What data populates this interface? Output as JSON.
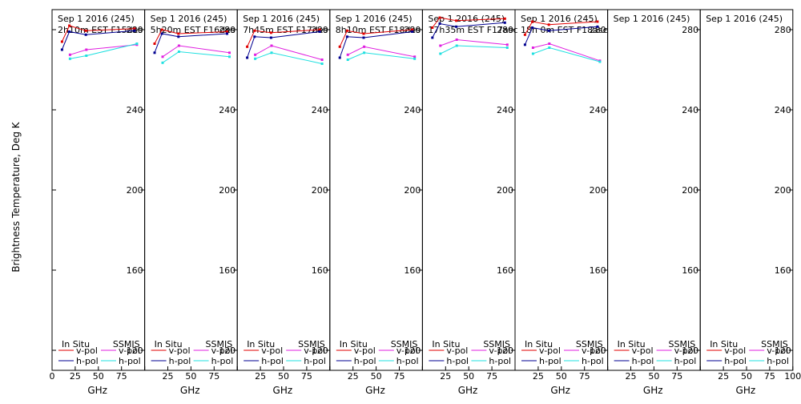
{
  "figure": {
    "ylabel": "Brightness Temperature, Deg K",
    "xlabel": "GHz",
    "legend": {
      "in_situ": "In Situ",
      "ssmis": "SSMIS",
      "vpol": "v-pol",
      "hpol": "h-pol"
    }
  },
  "colors": {
    "insitu_v": "#e00000",
    "insitu_h": "#000090",
    "ssmis_v": "#e020e0",
    "ssmis_h": "#20e0e0"
  },
  "chart_data": [
    {
      "type": "line",
      "title": "Sep 1 2016 (245)",
      "subtitle": "2h10m  EST F15des",
      "xlim": [
        0,
        100
      ],
      "ylim": [
        110,
        290
      ],
      "yticks": [
        120,
        160,
        200,
        240,
        280
      ],
      "xticks": [
        0,
        25,
        50,
        75,
        100
      ],
      "series": [
        {
          "name": "In Situ v-pol",
          "x": [
            10.7,
            18.7,
            36.5,
            89
          ],
          "y": [
            274,
            282,
            279.5,
            280.5
          ]
        },
        {
          "name": "In Situ h-pol",
          "x": [
            10.7,
            18.7,
            36.5,
            89
          ],
          "y": [
            270,
            279,
            277.5,
            279.5
          ]
        },
        {
          "name": "SSMIS v-pol",
          "x": [
            19.35,
            37,
            91.65
          ],
          "y": [
            267.5,
            270,
            272.5
          ]
        },
        {
          "name": "SSMIS h-pol",
          "x": [
            19.35,
            37,
            91.65
          ],
          "y": [
            265.5,
            267,
            273
          ]
        }
      ]
    },
    {
      "type": "line",
      "title": "Sep 1 2016 (245)",
      "subtitle": "5h20m  EST F16des",
      "xlim": [
        0,
        100
      ],
      "ylim": [
        110,
        290
      ],
      "yticks": [
        120,
        160,
        200,
        240,
        280
      ],
      "xticks": [
        0,
        25,
        50,
        75,
        100
      ],
      "series": [
        {
          "name": "In Situ v-pol",
          "x": [
            10.7,
            18.7,
            36.5,
            89
          ],
          "y": [
            273,
            280,
            278,
            279
          ]
        },
        {
          "name": "In Situ h-pol",
          "x": [
            10.7,
            18.7,
            36.5,
            89
          ],
          "y": [
            268.5,
            278,
            276.5,
            278
          ]
        },
        {
          "name": "SSMIS v-pol",
          "x": [
            19.35,
            37,
            91.65
          ],
          "y": [
            266.5,
            272,
            268.5
          ]
        },
        {
          "name": "SSMIS h-pol",
          "x": [
            19.35,
            37,
            91.65
          ],
          "y": [
            263.5,
            269,
            266.5
          ]
        }
      ]
    },
    {
      "type": "line",
      "title": "Sep 1 2016 (245)",
      "subtitle": "7h45m  EST F17des",
      "xlim": [
        0,
        100
      ],
      "ylim": [
        110,
        290
      ],
      "yticks": [
        120,
        160,
        200,
        240,
        280
      ],
      "xticks": [
        0,
        25,
        50,
        75,
        100
      ],
      "series": [
        {
          "name": "In Situ v-pol",
          "x": [
            10.7,
            18.7,
            36.5,
            89
          ],
          "y": [
            271.5,
            279.5,
            278.5,
            280
          ]
        },
        {
          "name": "In Situ h-pol",
          "x": [
            10.7,
            18.7,
            36.5,
            89
          ],
          "y": [
            266,
            276.5,
            276,
            279
          ]
        },
        {
          "name": "SSMIS v-pol",
          "x": [
            19.35,
            37,
            91.65
          ],
          "y": [
            267.5,
            272,
            265
          ]
        },
        {
          "name": "SSMIS h-pol",
          "x": [
            19.35,
            37,
            91.65
          ],
          "y": [
            265.5,
            268.5,
            263
          ]
        }
      ]
    },
    {
      "type": "line",
      "title": "Sep 1 2016 (245)",
      "subtitle": "8h10m  EST F18des",
      "xlim": [
        0,
        100
      ],
      "ylim": [
        110,
        290
      ],
      "yticks": [
        120,
        160,
        200,
        240,
        280
      ],
      "xticks": [
        0,
        25,
        50,
        75,
        100
      ],
      "series": [
        {
          "name": "In Situ v-pol",
          "x": [
            10.7,
            18.7,
            36.5,
            89
          ],
          "y": [
            271.5,
            279.5,
            278,
            280
          ]
        },
        {
          "name": "In Situ h-pol",
          "x": [
            10.7,
            18.7,
            36.5,
            89
          ],
          "y": [
            266,
            276.5,
            276,
            279
          ]
        },
        {
          "name": "SSMIS v-pol",
          "x": [
            19.35,
            37,
            91.65
          ],
          "y": [
            267.5,
            271.5,
            266.5
          ]
        },
        {
          "name": "SSMIS h-pol",
          "x": [
            19.35,
            37,
            91.65
          ],
          "y": [
            265,
            268.5,
            265.5
          ]
        }
      ]
    },
    {
      "type": "line",
      "title": "Sep 1 2016 (245)",
      "subtitle": "17h35m  EST F17asc",
      "xlim": [
        0,
        100
      ],
      "ylim": [
        110,
        290
      ],
      "yticks": [
        120,
        160,
        200,
        240,
        280
      ],
      "xticks": [
        0,
        25,
        50,
        75,
        100
      ],
      "series": [
        {
          "name": "In Situ v-pol",
          "x": [
            10.7,
            18.7,
            36.5,
            89
          ],
          "y": [
            281,
            286,
            284.5,
            285.5
          ]
        },
        {
          "name": "In Situ h-pol",
          "x": [
            10.7,
            18.7,
            36.5,
            89
          ],
          "y": [
            276,
            283,
            281.5,
            283.5
          ]
        },
        {
          "name": "SSMIS v-pol",
          "x": [
            19.35,
            37,
            91.65
          ],
          "y": [
            272,
            275,
            272.5
          ]
        },
        {
          "name": "SSMIS h-pol",
          "x": [
            19.35,
            37,
            91.65
          ],
          "y": [
            268,
            272,
            271
          ]
        }
      ]
    },
    {
      "type": "line",
      "title": "Sep 1 2016 (245)",
      "subtitle": "18h 0m  EST F18asc",
      "xlim": [
        0,
        100
      ],
      "ylim": [
        110,
        290
      ],
      "yticks": [
        120,
        160,
        200,
        240,
        280
      ],
      "xticks": [
        0,
        25,
        50,
        75,
        100
      ],
      "series": [
        {
          "name": "In Situ v-pol",
          "x": [
            10.7,
            18.7,
            36.5,
            89
          ],
          "y": [
            277.5,
            284,
            282.5,
            284
          ]
        },
        {
          "name": "In Situ h-pol",
          "x": [
            10.7,
            18.7,
            36.5,
            89
          ],
          "y": [
            272.5,
            281,
            279.5,
            281.5
          ]
        },
        {
          "name": "SSMIS v-pol",
          "x": [
            19.35,
            37,
            91.65
          ],
          "y": [
            271,
            273,
            264.5
          ]
        },
        {
          "name": "SSMIS h-pol",
          "x": [
            19.35,
            37,
            91.65
          ],
          "y": [
            268,
            271,
            264
          ]
        }
      ]
    },
    {
      "type": "line",
      "title": "Sep 1 2016 (245)",
      "subtitle": "",
      "xlim": [
        0,
        100
      ],
      "ylim": [
        110,
        290
      ],
      "yticks": [
        120,
        160,
        200,
        240,
        280
      ],
      "xticks": [
        0,
        25,
        50,
        75,
        100
      ],
      "series": []
    },
    {
      "type": "line",
      "title": "Sep 1 2016 (245)",
      "subtitle": "",
      "xlim": [
        0,
        100
      ],
      "ylim": [
        110,
        290
      ],
      "yticks": [
        120,
        160,
        200,
        240,
        280
      ],
      "xticks": [
        0,
        25,
        50,
        75,
        100
      ],
      "series": []
    }
  ]
}
